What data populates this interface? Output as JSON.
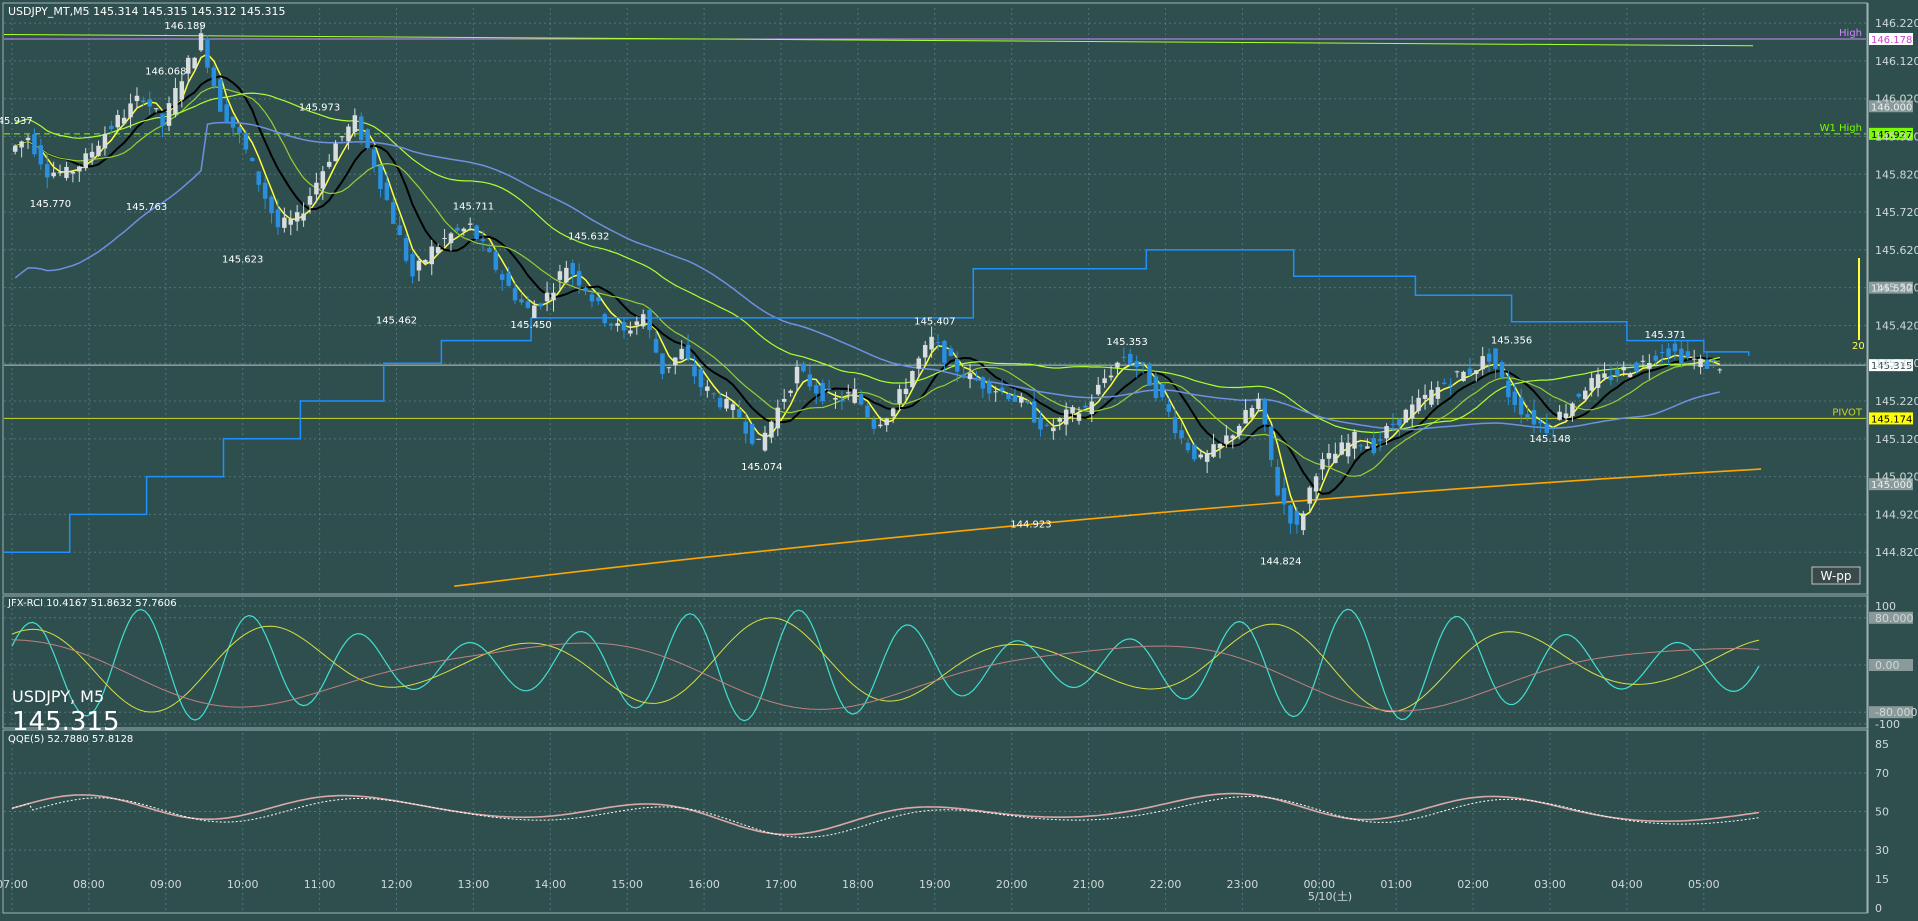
{
  "window": {
    "symbol_header": "USDJPY_MT,M5",
    "ohlc_text": "145.314 145.315 145.312 145.315",
    "overlay_symbol": "USDJPY, M5",
    "overlay_price": "145.315"
  },
  "colors": {
    "background": "#2f4f4f",
    "grid": "#6f8f9f",
    "candle_up": "#d8dde0",
    "candle_down": "#2a8fdf",
    "ma_black": "#000000",
    "ma_yellow": "#ffff40",
    "ma_green": "#9acd32",
    "ma_lightgreen": "#adff2f",
    "ma_blue": "#6f8fe0",
    "ma_orange": "#ffa500",
    "channel": "#1e90ff",
    "high_line": "#cc88ff",
    "w1high_line": "#7cfc00",
    "pivot_line": "#c8d820",
    "rci_fast": "#40e0d0",
    "rci_mid": "#d8e040",
    "rci_slow": "#c08080",
    "qqe_main": "#d8a8a8",
    "qqe_signal": "#ffffff"
  },
  "chart_data": [
    {
      "type": "candlestick",
      "name": "USDJPY_MT,M5",
      "x_axis": {
        "ticks": [
          "07:00",
          "08:00",
          "09:00",
          "10:00",
          "11:00",
          "12:00",
          "13:00",
          "14:00",
          "15:00",
          "16:00",
          "17:00",
          "18:00",
          "19:00",
          "20:00",
          "21:00",
          "22:00",
          "23:00",
          "00:00",
          "01:00",
          "02:00",
          "03:00",
          "04:00",
          "05:00"
        ],
        "date_label": "5/10(土)"
      },
      "y_axis": {
        "ylim": [
          144.72,
          146.26
        ],
        "ticks": [
          "146.220",
          "146.120",
          "146.020",
          "145.920",
          "145.820",
          "145.720",
          "145.620",
          "145.520",
          "145.420",
          "145.320",
          "145.220",
          "145.120",
          "145.020",
          "144.920",
          "144.820"
        ]
      },
      "price_points": [
        [
          "07:00",
          145.88
        ],
        [
          "07:15",
          145.92
        ],
        [
          "07:30",
          145.83
        ],
        [
          "07:45",
          145.82
        ],
        [
          "08:00",
          145.86
        ],
        [
          "08:15",
          145.93
        ],
        [
          "08:30",
          145.98
        ],
        [
          "08:45",
          146.03
        ],
        [
          "09:00",
          145.95
        ],
        [
          "09:15",
          146.08
        ],
        [
          "09:30",
          146.18
        ],
        [
          "09:45",
          146.0
        ],
        [
          "10:00",
          145.92
        ],
        [
          "10:15",
          145.8
        ],
        [
          "10:30",
          145.68
        ],
        [
          "10:45",
          145.7
        ],
        [
          "11:00",
          145.8
        ],
        [
          "11:15",
          145.9
        ],
        [
          "11:30",
          145.96
        ],
        [
          "11:45",
          145.85
        ],
        [
          "12:00",
          145.7
        ],
        [
          "12:15",
          145.55
        ],
        [
          "12:30",
          145.62
        ],
        [
          "12:45",
          145.66
        ],
        [
          "13:00",
          145.68
        ],
        [
          "13:15",
          145.6
        ],
        [
          "13:30",
          145.52
        ],
        [
          "13:45",
          145.46
        ],
        [
          "14:00",
          145.5
        ],
        [
          "14:15",
          145.58
        ],
        [
          "14:30",
          145.52
        ],
        [
          "14:45",
          145.44
        ],
        [
          "15:00",
          145.4
        ],
        [
          "15:15",
          145.45
        ],
        [
          "15:30",
          145.3
        ],
        [
          "15:45",
          145.35
        ],
        [
          "16:00",
          145.26
        ],
        [
          "16:15",
          145.22
        ],
        [
          "16:30",
          145.18
        ],
        [
          "16:45",
          145.1
        ],
        [
          "17:00",
          145.2
        ],
        [
          "17:15",
          145.3
        ],
        [
          "17:30",
          145.25
        ],
        [
          "17:45",
          145.22
        ],
        [
          "18:00",
          145.24
        ],
        [
          "18:15",
          145.16
        ],
        [
          "18:30",
          145.2
        ],
        [
          "18:45",
          145.3
        ],
        [
          "19:00",
          145.38
        ],
        [
          "19:15",
          145.32
        ],
        [
          "19:30",
          145.28
        ],
        [
          "19:45",
          145.26
        ],
        [
          "20:00",
          145.24
        ],
        [
          "20:15",
          145.2
        ],
        [
          "20:30",
          145.14
        ],
        [
          "20:45",
          145.18
        ],
        [
          "21:00",
          145.2
        ],
        [
          "21:15",
          145.28
        ],
        [
          "21:30",
          145.34
        ],
        [
          "21:45",
          145.3
        ],
        [
          "22:00",
          145.22
        ],
        [
          "22:15",
          145.12
        ],
        [
          "22:30",
          145.06
        ],
        [
          "22:45",
          145.1
        ],
        [
          "23:00",
          145.16
        ],
        [
          "23:15",
          145.22
        ],
        [
          "23:30",
          144.98
        ],
        [
          "23:45",
          144.88
        ],
        [
          "00:00",
          145.04
        ],
        [
          "00:15",
          145.08
        ],
        [
          "00:30",
          145.12
        ],
        [
          "00:45",
          145.1
        ],
        [
          "01:00",
          145.16
        ],
        [
          "01:15",
          145.2
        ],
        [
          "01:30",
          145.24
        ],
        [
          "01:45",
          145.28
        ],
        [
          "02:00",
          145.3
        ],
        [
          "02:15",
          145.34
        ],
        [
          "02:30",
          145.24
        ],
        [
          "02:45",
          145.18
        ],
        [
          "03:00",
          145.15
        ],
        [
          "03:15",
          145.2
        ],
        [
          "03:30",
          145.26
        ],
        [
          "03:45",
          145.28
        ],
        [
          "04:00",
          145.3
        ],
        [
          "04:15",
          145.32
        ],
        [
          "04:30",
          145.36
        ],
        [
          "04:45",
          145.34
        ],
        [
          "05:00",
          145.32
        ],
        [
          "05:15",
          145.315
        ]
      ],
      "annotations": [
        {
          "time": "09:15",
          "label": "146.189",
          "kind": "high"
        },
        {
          "time": "09:00",
          "label": "146.068",
          "kind": "high"
        },
        {
          "time": "07:00",
          "label": "145.937",
          "kind": "high"
        },
        {
          "time": "11:00",
          "label": "145.973",
          "kind": "high"
        },
        {
          "time": "07:30",
          "label": "145.770",
          "kind": "low"
        },
        {
          "time": "08:45",
          "label": "145.763",
          "kind": "low"
        },
        {
          "time": "10:00",
          "label": "145.623",
          "kind": "low"
        },
        {
          "time": "13:00",
          "label": "145.711",
          "kind": "high"
        },
        {
          "time": "14:30",
          "label": "145.632",
          "kind": "high"
        },
        {
          "time": "12:00",
          "label": "145.462",
          "kind": "low"
        },
        {
          "time": "13:45",
          "label": "145.450",
          "kind": "low"
        },
        {
          "time": "19:00",
          "label": "145.407",
          "kind": "high"
        },
        {
          "time": "16:45",
          "label": "145.074",
          "kind": "low"
        },
        {
          "time": "21:30",
          "label": "145.353",
          "kind": "high"
        },
        {
          "time": "20:15",
          "label": "144.923",
          "kind": "low"
        },
        {
          "time": "23:30",
          "label": "144.824",
          "kind": "low"
        },
        {
          "time": "02:30",
          "label": "145.356",
          "kind": "high"
        },
        {
          "time": "03:00",
          "label": "145.148",
          "kind": "low"
        },
        {
          "time": "04:30",
          "label": "145.371",
          "kind": "high"
        }
      ],
      "levels": [
        {
          "name": "High",
          "label": "High",
          "price_tag": "146.178",
          "value": 146.178
        },
        {
          "name": "W1 High",
          "label": "W1 High",
          "price_tag": "145.927",
          "value": 145.927
        },
        {
          "name": "PIVOT",
          "label": "PIVOT",
          "price_tag": "145.174",
          "value": 145.174
        },
        {
          "name": "current",
          "label": "",
          "price_tag": "145.315",
          "value": 145.315
        }
      ],
      "axis_tags": [
        "146.000",
        "145.520",
        "145.000"
      ],
      "side_marker": "20",
      "button": "W-pp"
    },
    {
      "type": "line",
      "name": "JFX-RCI",
      "header": "JFX-RCI 10.4167 51.8632 57.7606",
      "ylim": [
        -100,
        100
      ],
      "y_ticks": [
        "100",
        "80.000",
        "0.00",
        "-80.000",
        "-100"
      ]
    },
    {
      "type": "line",
      "name": "QQE(5)",
      "header": "QQE(5) 52.7880 57.8128",
      "ylim": [
        0,
        85
      ],
      "y_ticks": [
        "85",
        "70",
        "50",
        "30",
        "15",
        "0"
      ]
    }
  ]
}
